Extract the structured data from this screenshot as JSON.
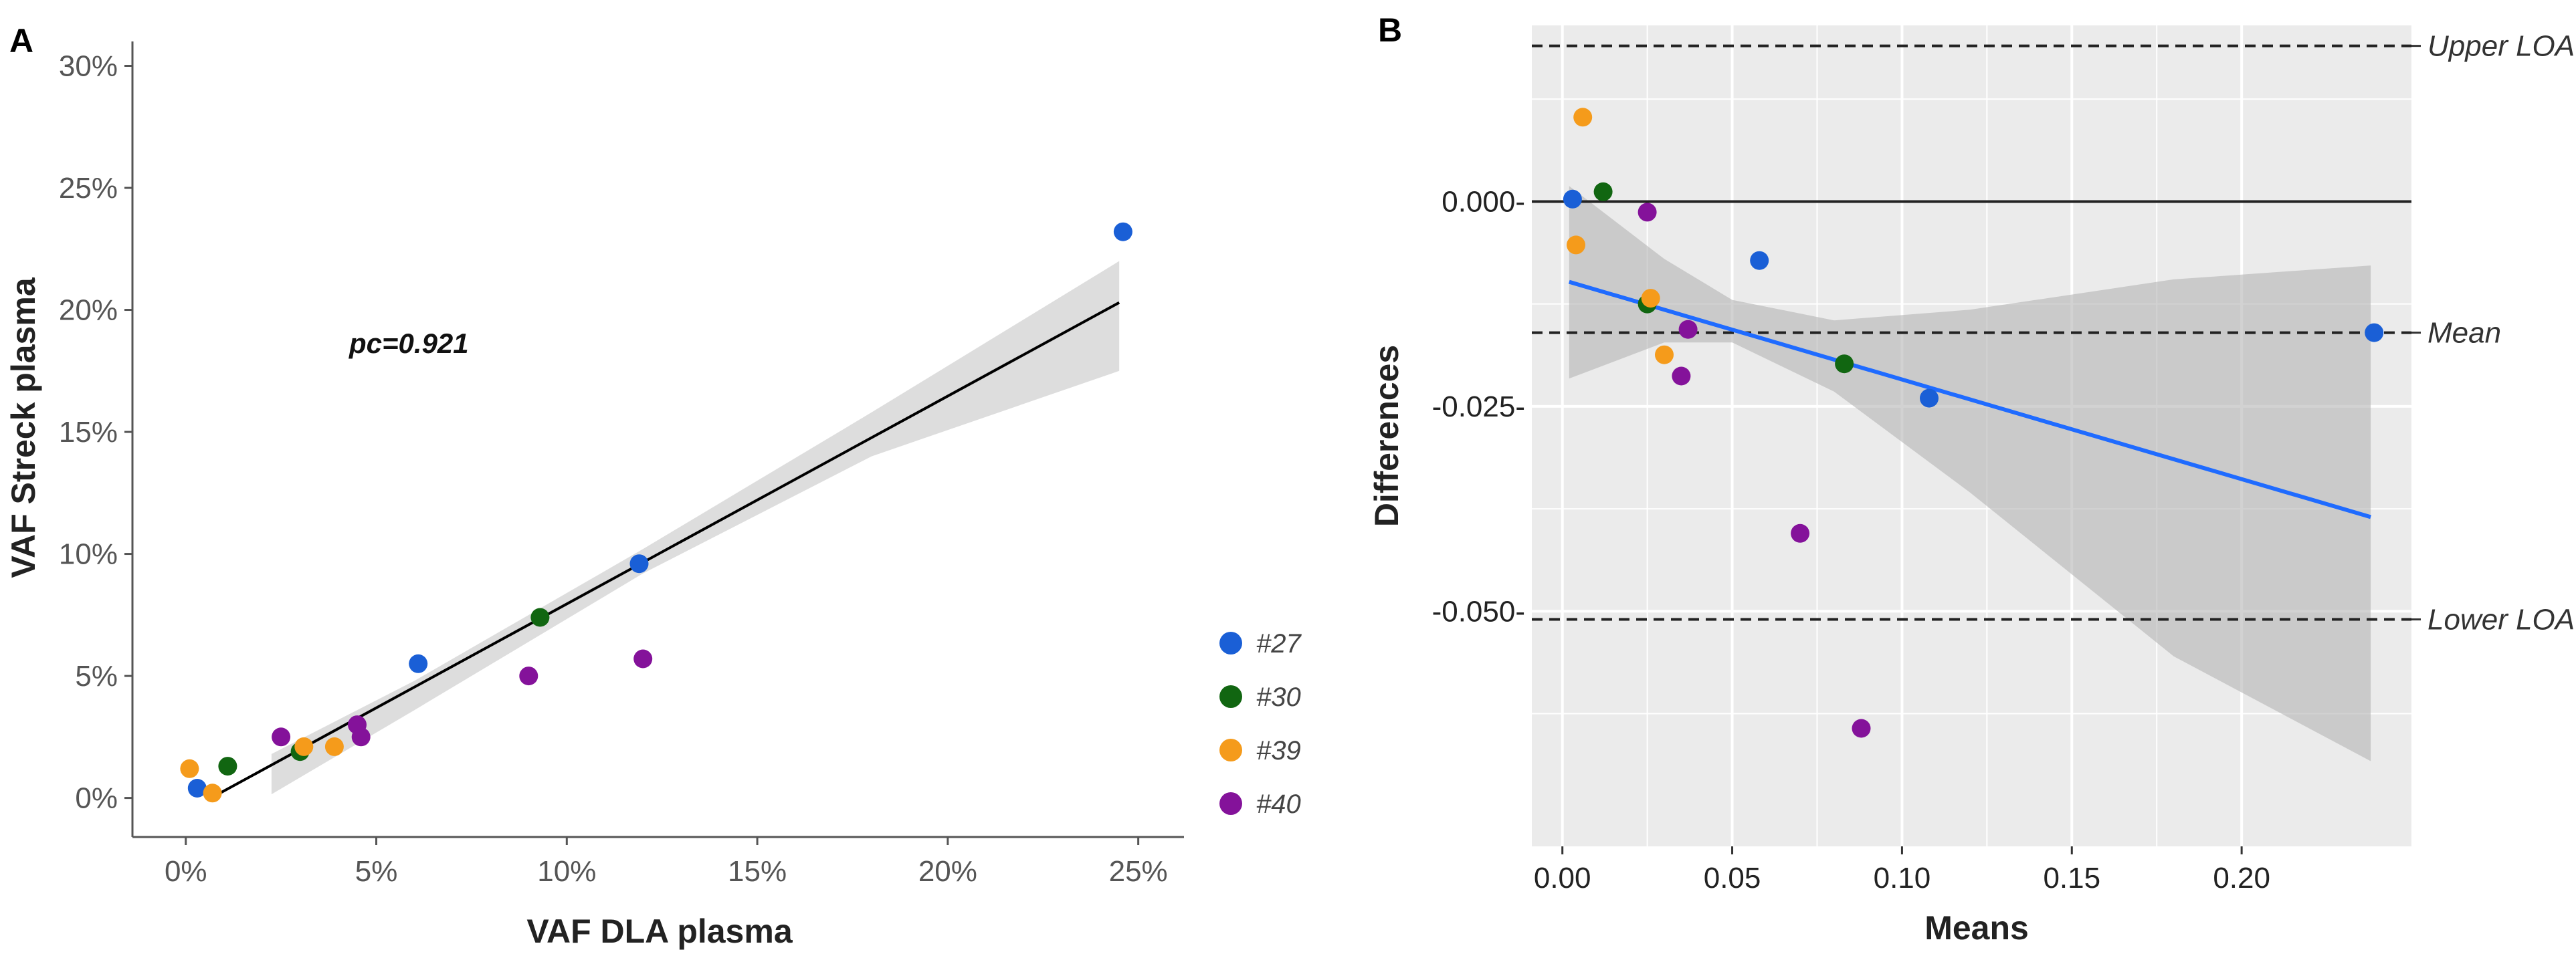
{
  "colors": {
    "#27": "#1a5fd6",
    "#30": "#116611",
    "#39": "#f59b1b",
    "#40": "#84129a",
    "fit_line_a": "#000000",
    "fit_line_b": "#1f6bff",
    "confidence_band": "#b4b4b4",
    "panel_b_background": "#ebebeb"
  },
  "chart_data": [
    {
      "panel": "A",
      "type": "scatter",
      "xlabel": "VAF DLA plasma",
      "ylabel": "VAF Streck plasma",
      "xlim": [
        -0.014,
        0.262
      ],
      "ylim": [
        -0.016,
        0.31
      ],
      "x_ticks": [
        0,
        0.05,
        0.1,
        0.15,
        0.2,
        0.25
      ],
      "x_tick_labels": [
        "0%",
        "5%",
        "10%",
        "15%",
        "20%",
        "25%"
      ],
      "y_ticks": [
        0,
        0.05,
        0.1,
        0.15,
        0.2,
        0.25,
        0.3
      ],
      "y_tick_labels": [
        "0%",
        "5%",
        "10%",
        "15%",
        "20%",
        "25%",
        "30%"
      ],
      "annotation": "pc=0.921",
      "legend": [
        "#27",
        "#30",
        "#39",
        "#40"
      ],
      "legend_position": "right",
      "series": [
        {
          "name": "#27",
          "points": [
            [
              0.003,
              0.004
            ],
            [
              0.061,
              0.055
            ],
            [
              0.119,
              0.096
            ],
            [
              0.246,
              0.232
            ]
          ]
        },
        {
          "name": "#30",
          "points": [
            [
              0.011,
              0.013
            ],
            [
              0.03,
              0.019
            ],
            [
              0.093,
              0.074
            ]
          ]
        },
        {
          "name": "#39",
          "points": [
            [
              0.001,
              0.012
            ],
            [
              0.007,
              0.002
            ],
            [
              0.031,
              0.021
            ],
            [
              0.039,
              0.021
            ]
          ]
        },
        {
          "name": "#40",
          "points": [
            [
              0.025,
              0.025
            ],
            [
              0.045,
              0.03
            ],
            [
              0.046,
              0.025
            ],
            [
              0.09,
              0.05
            ],
            [
              0.12,
              0.057
            ]
          ]
        }
      ],
      "fit_line": [
        [
          0.009,
          0.002
        ],
        [
          0.245,
          0.203
        ]
      ],
      "confidence_band": {
        "x": [
          0.0225,
          0.06,
          0.12,
          0.18,
          0.245
        ],
        "upper": [
          0.018,
          0.048,
          0.102,
          0.158,
          0.22
        ],
        "lower": [
          0.0015,
          0.036,
          0.092,
          0.14,
          0.175
        ]
      },
      "grid": false
    },
    {
      "panel": "B",
      "type": "scatter",
      "xlabel": "Means",
      "ylabel": "Differences",
      "xlim": [
        -0.009,
        0.25
      ],
      "ylim": [
        -0.0787,
        0.0215
      ],
      "x_ticks": [
        0,
        0.05,
        0.1,
        0.15,
        0.2
      ],
      "x_tick_labels": [
        "0.00",
        "0.05",
        "0.10",
        "0.15",
        "0.20"
      ],
      "y_ticks": [
        0,
        -0.025,
        -0.05
      ],
      "y_tick_labels": [
        "0.000-",
        "-0.025-",
        "-0.050-"
      ],
      "reference_lines": [
        {
          "label": "Upper LOA",
          "value": 0.019,
          "style": "dashed"
        },
        {
          "label": "Mean",
          "value": -0.016,
          "style": "dashed"
        },
        {
          "label": "Lower LOA",
          "value": -0.051,
          "style": "dashed"
        },
        {
          "label": "",
          "value": 0,
          "style": "solid"
        }
      ],
      "series": [
        {
          "name": "#27",
          "points": [
            [
              0.003,
              0.0003
            ],
            [
              0.058,
              -0.0072
            ],
            [
              0.108,
              -0.024
            ],
            [
              0.239,
              -0.016
            ]
          ]
        },
        {
          "name": "#30",
          "points": [
            [
              0.012,
              0.0012
            ],
            [
              0.025,
              -0.0125
            ],
            [
              0.083,
              -0.0198
            ]
          ]
        },
        {
          "name": "#39",
          "points": [
            [
              0.006,
              0.0103
            ],
            [
              0.004,
              -0.0053
            ],
            [
              0.026,
              -0.0118
            ],
            [
              0.03,
              -0.0187
            ]
          ]
        },
        {
          "name": "#40",
          "points": [
            [
              0.025,
              -0.0013
            ],
            [
              0.037,
              -0.0156
            ],
            [
              0.035,
              -0.0213
            ],
            [
              0.07,
              -0.0405
            ],
            [
              0.088,
              -0.0643
            ]
          ]
        }
      ],
      "fit_line": [
        [
          0.002,
          -0.0098
        ],
        [
          0.238,
          -0.0385
        ]
      ],
      "confidence_band": {
        "x": [
          0.002,
          0.03,
          0.05,
          0.08,
          0.12,
          0.18,
          0.238
        ],
        "upper": [
          0.0019,
          -0.007,
          -0.012,
          -0.0145,
          -0.0132,
          -0.0095,
          -0.0078
        ],
        "lower": [
          -0.0216,
          -0.0172,
          -0.0172,
          -0.0232,
          -0.0355,
          -0.0555,
          -0.0683
        ]
      },
      "grid": true
    }
  ]
}
